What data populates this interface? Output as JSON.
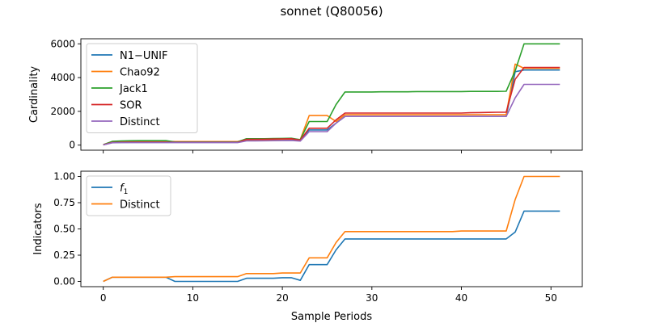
{
  "figure": {
    "title": "sonnet (Q80056)",
    "xlabel": "Sample Periods"
  },
  "chart_data": [
    {
      "type": "line",
      "panel": "top",
      "ylabel": "Cardinality",
      "xlim": [
        -2.5,
        53.5
      ],
      "ylim": [
        -300,
        6300
      ],
      "xticks": [
        0,
        10,
        20,
        30,
        40,
        50
      ],
      "yticks": [
        0,
        2000,
        4000,
        6000
      ],
      "ytick_labels": [
        "0",
        "2000",
        "4000",
        "6000"
      ],
      "show_xtick_labels": false,
      "grid": false,
      "legend_position": "upper-left",
      "x": [
        0,
        1,
        2,
        3,
        4,
        5,
        6,
        7,
        8,
        9,
        10,
        11,
        12,
        13,
        14,
        15,
        16,
        17,
        18,
        19,
        20,
        21,
        22,
        23,
        24,
        25,
        26,
        27,
        28,
        29,
        30,
        31,
        32,
        33,
        34,
        35,
        36,
        37,
        38,
        39,
        40,
        41,
        42,
        43,
        44,
        45,
        46,
        47,
        48,
        49,
        50,
        51
      ],
      "series": [
        {
          "name": "N1−UNIF",
          "color": "#1f77b4",
          "values": [
            20,
            150,
            160,
            165,
            165,
            165,
            165,
            165,
            165,
            165,
            165,
            165,
            165,
            165,
            165,
            165,
            270,
            280,
            285,
            290,
            300,
            310,
            280,
            900,
            900,
            900,
            1300,
            1700,
            1700,
            1700,
            1700,
            1700,
            1700,
            1700,
            1700,
            1700,
            1700,
            1700,
            1700,
            1700,
            1700,
            1700,
            1700,
            1700,
            1700,
            1700,
            4350,
            4450,
            4450,
            4450,
            4450,
            4450
          ]
        },
        {
          "name": "Chao92",
          "color": "#ff7f0e",
          "values": [
            20,
            200,
            210,
            215,
            215,
            215,
            215,
            215,
            210,
            210,
            210,
            210,
            210,
            210,
            210,
            210,
            320,
            330,
            335,
            340,
            350,
            360,
            330,
            1750,
            1750,
            1750,
            1400,
            1800,
            1800,
            1800,
            1800,
            1800,
            1800,
            1800,
            1800,
            1800,
            1800,
            1800,
            1800,
            1800,
            1800,
            1800,
            1800,
            1800,
            1800,
            1800,
            4800,
            4550,
            4550,
            4550,
            4550,
            4550
          ]
        },
        {
          "name": "Jack1",
          "color": "#2ca02c",
          "values": [
            30,
            220,
            250,
            260,
            265,
            265,
            265,
            265,
            190,
            190,
            190,
            190,
            190,
            190,
            190,
            190,
            380,
            380,
            380,
            390,
            400,
            410,
            320,
            1400,
            1400,
            1400,
            2400,
            3150,
            3150,
            3150,
            3150,
            3160,
            3160,
            3160,
            3160,
            3170,
            3170,
            3170,
            3170,
            3170,
            3170,
            3180,
            3180,
            3180,
            3180,
            3190,
            4400,
            6000,
            6000,
            6000,
            6000,
            6000
          ]
        },
        {
          "name": "SOR",
          "color": "#d62728",
          "values": [
            20,
            160,
            170,
            175,
            175,
            175,
            175,
            175,
            170,
            170,
            170,
            170,
            170,
            170,
            170,
            170,
            340,
            345,
            350,
            360,
            370,
            380,
            300,
            1000,
            1000,
            1000,
            1500,
            1900,
            1900,
            1900,
            1900,
            1900,
            1900,
            1900,
            1900,
            1900,
            1900,
            1900,
            1900,
            1900,
            1900,
            1920,
            1930,
            1940,
            1950,
            1950,
            3900,
            4600,
            4600,
            4600,
            4600,
            4600
          ]
        },
        {
          "name": "Distinct",
          "color": "#9467bd",
          "values": [
            10,
            140,
            150,
            150,
            150,
            150,
            150,
            150,
            150,
            150,
            150,
            150,
            150,
            150,
            150,
            150,
            250,
            255,
            260,
            265,
            270,
            280,
            240,
            800,
            800,
            800,
            1300,
            1700,
            1700,
            1700,
            1700,
            1700,
            1700,
            1700,
            1700,
            1700,
            1700,
            1700,
            1700,
            1700,
            1700,
            1700,
            1700,
            1700,
            1700,
            1700,
            2800,
            3600,
            3600,
            3600,
            3600,
            3600
          ]
        }
      ]
    },
    {
      "type": "line",
      "panel": "bottom",
      "ylabel": "Indicators",
      "xlabel": "Sample Periods",
      "xlim": [
        -2.5,
        53.5
      ],
      "ylim": [
        -0.05,
        1.05
      ],
      "xticks": [
        0,
        10,
        20,
        30,
        40,
        50
      ],
      "xtick_labels": [
        "0",
        "10",
        "20",
        "30",
        "40",
        "50"
      ],
      "yticks": [
        0.0,
        0.25,
        0.5,
        0.75,
        1.0
      ],
      "ytick_labels": [
        "0.00",
        "0.25",
        "0.50",
        "0.75",
        "1.00"
      ],
      "grid": false,
      "legend_position": "upper-left",
      "x": [
        0,
        1,
        2,
        3,
        4,
        5,
        6,
        7,
        8,
        9,
        10,
        11,
        12,
        13,
        14,
        15,
        16,
        17,
        18,
        19,
        20,
        21,
        22,
        23,
        24,
        25,
        26,
        27,
        28,
        29,
        30,
        31,
        32,
        33,
        34,
        35,
        36,
        37,
        38,
        39,
        40,
        41,
        42,
        43,
        44,
        45,
        46,
        47,
        48,
        49,
        50,
        51
      ],
      "series": [
        {
          "name": "f",
          "name_subscript": "1",
          "color": "#1f77b4",
          "values": [
            0.0,
            0.04,
            0.04,
            0.04,
            0.04,
            0.04,
            0.04,
            0.04,
            0.0,
            0.0,
            0.0,
            0.0,
            0.0,
            0.0,
            0.0,
            0.0,
            0.03,
            0.03,
            0.03,
            0.03,
            0.035,
            0.035,
            0.01,
            0.16,
            0.16,
            0.16,
            0.3,
            0.405,
            0.405,
            0.405,
            0.405,
            0.405,
            0.405,
            0.405,
            0.405,
            0.405,
            0.405,
            0.405,
            0.405,
            0.405,
            0.405,
            0.405,
            0.405,
            0.405,
            0.405,
            0.405,
            0.47,
            0.67,
            0.67,
            0.67,
            0.67,
            0.67
          ]
        },
        {
          "name": "Distinct",
          "color": "#ff7f0e",
          "values": [
            0.0,
            0.04,
            0.04,
            0.04,
            0.04,
            0.04,
            0.04,
            0.04,
            0.045,
            0.045,
            0.045,
            0.045,
            0.045,
            0.045,
            0.045,
            0.045,
            0.075,
            0.075,
            0.075,
            0.075,
            0.08,
            0.08,
            0.08,
            0.225,
            0.225,
            0.225,
            0.37,
            0.475,
            0.475,
            0.475,
            0.475,
            0.475,
            0.475,
            0.475,
            0.475,
            0.475,
            0.475,
            0.475,
            0.475,
            0.475,
            0.48,
            0.48,
            0.48,
            0.48,
            0.48,
            0.48,
            0.78,
            1.0,
            1.0,
            1.0,
            1.0,
            1.0
          ]
        }
      ]
    }
  ]
}
